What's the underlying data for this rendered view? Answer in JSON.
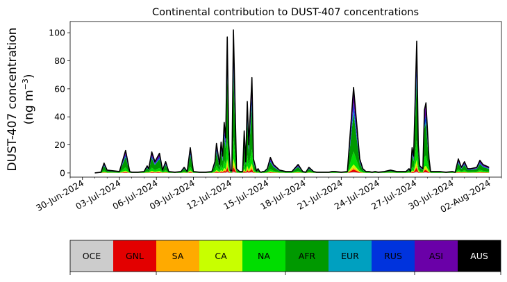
{
  "chart_data": [
    {
      "type": "area",
      "stacked": true,
      "title": "Continental contribution to DUST-407 concentrations",
      "ylabel_line1": "DUST-407 concentration",
      "ylabel_line2_prefix": "(ng m",
      "ylabel_line2_sup": "−3",
      "ylabel_line2_suffix": ")",
      "ylim": [
        -3,
        108
      ],
      "xlim": [
        "2024-06-29",
        "2024-08-03"
      ],
      "yticks": [
        0,
        20,
        40,
        60,
        80,
        100
      ],
      "xticks": [
        "2024-06-30",
        "2024-07-03",
        "2024-07-06",
        "2024-07-09",
        "2024-07-12",
        "2024-07-15",
        "2024-07-18",
        "2024-07-21",
        "2024-07-24",
        "2024-07-27",
        "2024-07-30",
        "2024-08-02"
      ],
      "xtick_labels": [
        "30-Jun-2024",
        "03-Jul-2024",
        "06-Jul-2024",
        "09-Jul-2024",
        "12-Jul-2024",
        "15-Jul-2024",
        "18-Jul-2024",
        "21-Jul-2024",
        "24-Jul-2024",
        "27-Jul-2024",
        "30-Jul-2024",
        "02-Aug-2024"
      ],
      "grid": false,
      "series_order": [
        "OCE",
        "GNL",
        "SA",
        "CA",
        "NA",
        "AFR",
        "EUR",
        "RUS",
        "ASI",
        "AUS"
      ],
      "series_colors": {
        "OCE": "#cccccc",
        "GNL": "#e30000",
        "SA": "#ffaa00",
        "CA": "#c8ff00",
        "NA": "#00dd00",
        "AFR": "#009900",
        "EUR": "#00a0c0",
        "RUS": "#0033dd",
        "ASI": "#6a00a8",
        "AUS": "#000000"
      },
      "outline_color": "#000000",
      "x": [
        "2024-07-01",
        "2024-07-01T12:00",
        "2024-07-01T18:00",
        "2024-07-02",
        "2024-07-02T12:00",
        "2024-07-03",
        "2024-07-03T12:00",
        "2024-07-03T20:00",
        "2024-07-04",
        "2024-07-04T12:00",
        "2024-07-05",
        "2024-07-05T06:00",
        "2024-07-05T09:00",
        "2024-07-05T15:00",
        "2024-07-05T21:00",
        "2024-07-06T03:00",
        "2024-07-06T06:00",
        "2024-07-06T12:00",
        "2024-07-06T18:00",
        "2024-07-07",
        "2024-07-07T12:00",
        "2024-07-08",
        "2024-07-08T06:00",
        "2024-07-08T12:00",
        "2024-07-08T18:00",
        "2024-07-09",
        "2024-07-09T12:00",
        "2024-07-10",
        "2024-07-10T12:00",
        "2024-07-10T18:00",
        "2024-07-10T21:00",
        "2024-07-11T03:00",
        "2024-07-11T06:00",
        "2024-07-11T09:00",
        "2024-07-11T12:00",
        "2024-07-11T15:00",
        "2024-07-11T18:00",
        "2024-07-11T21:00",
        "2024-07-12",
        "2024-07-12T03:00",
        "2024-07-12T06:00",
        "2024-07-12T12:00",
        "2024-07-12T18:00",
        "2024-07-13",
        "2024-07-13T03:00",
        "2024-07-13T06:00",
        "2024-07-13T09:00",
        "2024-07-13T12:00",
        "2024-07-13T18:00",
        "2024-07-13T21:00",
        "2024-07-14T03:00",
        "2024-07-14T06:00",
        "2024-07-14T09:00",
        "2024-07-14T12:00",
        "2024-07-14T15:00",
        "2024-07-14T18:00",
        "2024-07-15",
        "2024-07-15T06:00",
        "2024-07-15T12:00",
        "2024-07-16",
        "2024-07-16T12:00",
        "2024-07-17",
        "2024-07-17T12:00",
        "2024-07-17T21:00",
        "2024-07-18T03:00",
        "2024-07-18T09:00",
        "2024-07-18T18:00",
        "2024-07-19",
        "2024-07-19T12:00",
        "2024-07-20",
        "2024-07-20T06:00",
        "2024-07-20T12:00",
        "2024-07-21",
        "2024-07-21T12:00",
        "2024-07-22",
        "2024-07-22T12:00",
        "2024-07-22T18:00",
        "2024-07-23",
        "2024-07-23T03:00",
        "2024-07-23T06:00",
        "2024-07-23T12:00",
        "2024-07-23T18:00",
        "2024-07-24",
        "2024-07-24T12:00",
        "2024-07-25",
        "2024-07-25T12:00",
        "2024-07-26",
        "2024-07-26T06:00",
        "2024-07-26T12:00",
        "2024-07-26T15:00",
        "2024-07-26T18:00",
        "2024-07-26T21:00",
        "2024-07-27T03:00",
        "2024-07-27T06:00",
        "2024-07-27T09:00",
        "2024-07-27T15:00",
        "2024-07-27T18:00",
        "2024-07-27T21:00",
        "2024-07-28T03:00",
        "2024-07-28T06:00",
        "2024-07-28T12:00",
        "2024-07-29",
        "2024-07-29T12:00",
        "2024-07-30",
        "2024-07-30T06:00",
        "2024-07-30T12:00",
        "2024-07-30T18:00",
        "2024-07-31",
        "2024-07-31T06:00",
        "2024-07-31T12:00",
        "2024-08-01",
        "2024-08-01T06:00",
        "2024-08-01T12:00",
        "2024-08-01T18:00",
        "2024-08-02"
      ],
      "total": [
        0,
        0.5,
        7,
        2,
        1.5,
        1,
        16,
        1,
        0.5,
        0.5,
        1,
        5,
        3,
        15,
        8,
        12,
        14,
        2,
        8,
        1,
        0.5,
        1,
        4,
        1,
        18,
        1,
        0.5,
        0.5,
        1,
        8,
        21,
        6,
        22,
        12,
        36,
        25,
        97,
        20,
        2,
        1.5,
        102,
        3,
        1,
        1,
        30,
        8,
        51,
        20,
        68,
        10,
        1.5,
        3,
        1,
        0.5,
        1,
        1,
        3,
        11,
        6,
        2,
        1,
        1,
        6,
        1,
        0.5,
        4,
        1,
        0.5,
        0.5,
        0.5,
        1,
        1,
        0.5,
        1,
        61,
        10,
        3,
        1,
        1,
        1,
        0.5,
        1,
        0.5,
        1,
        2,
        1,
        1,
        1,
        3,
        1,
        18,
        12,
        94,
        20,
        5,
        3,
        45,
        50,
        10,
        1,
        1,
        1,
        0.5,
        1,
        0.5,
        10,
        4,
        8,
        3,
        3,
        4,
        9,
        6,
        5,
        4
      ],
      "component_shares": {
        "OCE": 0.01,
        "GNL": 0.03,
        "SA": 0.02,
        "CA": 0.04,
        "NA": 0.15,
        "AFR": 0.45,
        "EUR": 0.04,
        "RUS": 0.08,
        "ASI": 0.17,
        "AUS": 0.01
      }
    },
    {
      "type": "colorbar",
      "labels": [
        "OCE",
        "GNL",
        "SA",
        "CA",
        "NA",
        "AFR",
        "EUR",
        "RUS",
        "ASI",
        "AUS"
      ],
      "colors": [
        "#cccccc",
        "#e30000",
        "#ffaa00",
        "#c8ff00",
        "#00dd00",
        "#009900",
        "#00a0c0",
        "#0033dd",
        "#6a00a8",
        "#000000"
      ],
      "text_colors": [
        "#000000",
        "#000000",
        "#000000",
        "#000000",
        "#000000",
        "#000000",
        "#000000",
        "#000000",
        "#000000",
        "#ffffff"
      ]
    }
  ]
}
